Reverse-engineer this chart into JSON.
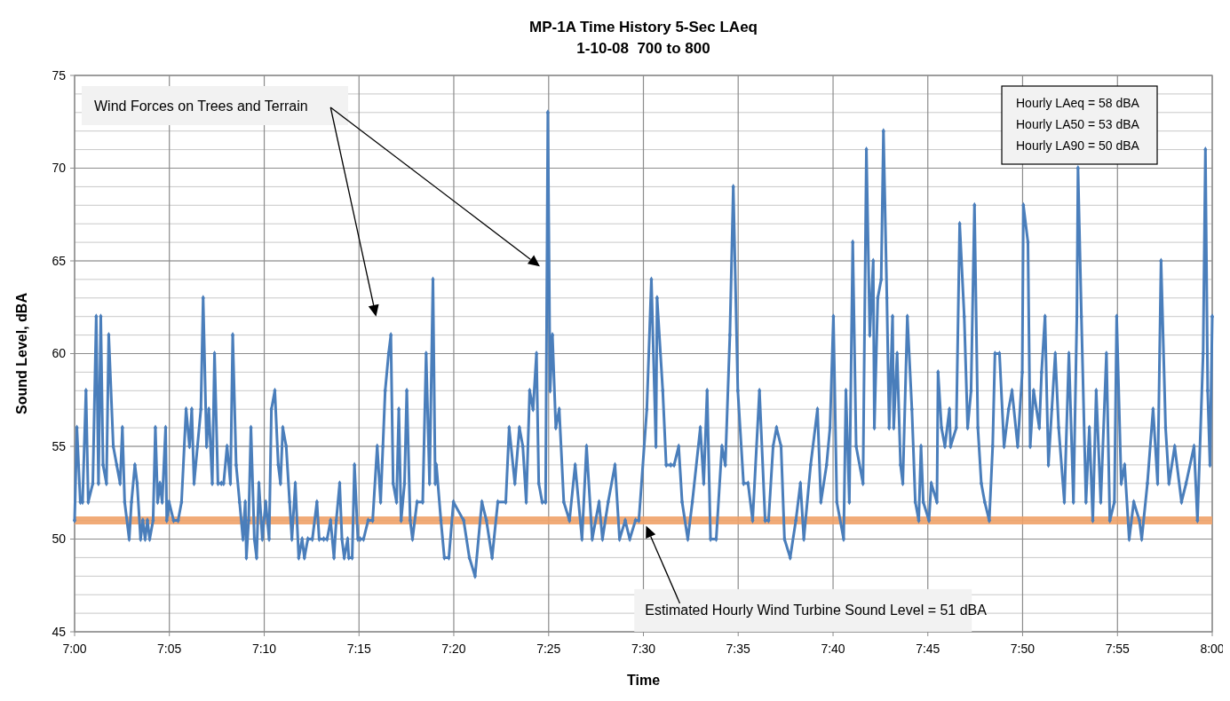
{
  "chart_data": {
    "type": "line",
    "title": "MP-1A Time History 5-Sec LAeq",
    "subtitle": "1-10-08  700 to 800",
    "xlabel": "Time",
    "ylabel": "Sound Level, dBA",
    "x": [
      7.0,
      7.002,
      7.005,
      7.007,
      7.01,
      7.012,
      7.016,
      7.019,
      7.021,
      7.023,
      7.025,
      7.028,
      7.03,
      7.034,
      7.037,
      7.04,
      7.042,
      7.044,
      7.048,
      7.05,
      7.053,
      7.055,
      7.058,
      7.06,
      7.062,
      7.064,
      7.066,
      7.069,
      7.071,
      7.073,
      7.075,
      7.077,
      7.08,
      7.081,
      7.083,
      7.087,
      7.091,
      7.094,
      7.098,
      7.101,
      7.103,
      7.105,
      7.108,
      7.111,
      7.113,
      7.116,
      7.118,
      7.121,
      7.123,
      7.126,
      7.129,
      7.131,
      7.134,
      7.137,
      7.139,
      7.142,
      7.145,
      7.148,
      7.15,
      7.151,
      7.153,
      7.155,
      7.158,
      7.16,
      7.162,
      7.165,
      7.168,
      7.171,
      7.173,
      7.176,
      7.179,
      7.181,
      7.183,
      7.186,
      7.189,
      7.191,
      7.194,
      7.197,
      7.2,
      7.202,
      7.205,
      7.209,
      7.213,
      7.215,
      7.219,
      7.222,
      7.225,
      7.228,
      7.23,
      7.233,
      7.235,
      7.237,
      7.24,
      7.241,
      7.244,
      7.246,
      7.249,
      7.251,
      7.254,
      7.258,
      7.262,
      7.266,
      7.269,
      7.271,
      7.273,
      7.276,
      7.278,
      7.28,
      7.283,
      7.285,
      7.287,
      7.29,
      7.292,
      7.295,
      7.297,
      7.301,
      7.306,
      7.309,
      7.312,
      7.315,
      7.317,
      7.318,
      7.322,
      7.325,
      7.329,
      7.333,
      7.342,
      7.347,
      7.352,
      7.358,
      7.362,
      7.367,
      7.372,
      7.379,
      7.382,
      7.387,
      7.391,
      7.394,
      7.397,
      7.4,
      7.403,
      7.406,
      7.408,
      7.411,
      7.414,
      7.416,
      7.418,
      7.42,
      7.423,
      7.426,
      7.43,
      7.435,
      7.44,
      7.446,
      7.45,
      7.455,
      7.461,
      7.464,
      7.469,
      7.475,
      7.479,
      7.484,
      7.488,
      7.493,
      7.496,
      7.503,
      7.507,
      7.511,
      7.512,
      7.517,
      7.52,
      7.524,
      7.527,
      7.531,
      7.534,
      7.539,
      7.543,
      7.55,
      7.553,
      7.556,
      7.559,
      7.564,
      7.569,
      7.572,
      7.576,
      7.579,
      7.583,
      7.588,
      7.592,
      7.596,
      7.602,
      7.607,
      7.61,
      7.614,
      7.617,
      7.621,
      7.624,
      7.629,
      7.634,
      7.638,
      7.641,
      7.647,
      7.653,
      7.656,
      7.661,
      7.664,
      7.667,
      7.67,
      7.676,
      7.678,
      7.681,
      7.684,
      7.687,
      7.693,
      7.696,
      7.699,
      7.702,
      7.703,
      7.706,
      7.709,
      7.711,
      7.714,
      7.716,
      7.719,
      7.72,
      7.723,
      7.726,
      7.728,
      7.732,
      7.736,
      7.739,
      7.742,
      7.744,
      7.746,
      7.751,
      7.753,
      7.758,
      7.759,
      7.762,
      7.765,
      7.769,
      7.77,
      7.775,
      7.778,
      7.782,
      7.785,
      7.788,
      7.791,
      7.794,
      7.797,
      7.8,
      7.804,
      7.807,
      7.809,
      7.813,
      7.817,
      7.821,
      7.824,
      7.829,
      7.833,
      7.834,
      7.838,
      7.84,
      7.843,
      7.848,
      7.85,
      7.853,
      7.856,
      7.859,
      7.862,
      7.865,
      7.87,
      7.874,
      7.878,
      7.881,
      7.882,
      7.885,
      7.889,
      7.892,
      7.895,
      7.898,
      7.902,
      7.907,
      7.91,
      7.914,
      7.916,
      7.92,
      7.923,
      7.927,
      7.931,
      7.936,
      7.938,
      7.943,
      7.948,
      7.952,
      7.955,
      7.959,
      7.962,
      7.967,
      7.973,
      7.977,
      7.984,
      7.987,
      7.992,
      7.994,
      7.996,
      7.998,
      8.0
    ],
    "series": [
      {
        "color": "#4a7ebb",
        "values": [
          51,
          56,
          52,
          52,
          58,
          52,
          53,
          62,
          53,
          62,
          54,
          53,
          61,
          55,
          54,
          53,
          56,
          52,
          50,
          52,
          54,
          53,
          50,
          51,
          50,
          51,
          50,
          51,
          56,
          52,
          53,
          52,
          56,
          51,
          52,
          51,
          51,
          52,
          57,
          55,
          57,
          53,
          55,
          57,
          63,
          55,
          57,
          53,
          60,
          53,
          53,
          53,
          55,
          53,
          61,
          54,
          52,
          50,
          52,
          49,
          51,
          56,
          50,
          49,
          53,
          50,
          52,
          50,
          57,
          58,
          54,
          53,
          56,
          55,
          52,
          50,
          53,
          49,
          50,
          49,
          50,
          50,
          52,
          50,
          50,
          50,
          51,
          49,
          51,
          53,
          50,
          49,
          50,
          49,
          49,
          54,
          50,
          50,
          50,
          51,
          51,
          55,
          52,
          55,
          58,
          60,
          61,
          53,
          52,
          57,
          51,
          53,
          58,
          51,
          50,
          52,
          52,
          60,
          53,
          64,
          53,
          54,
          51,
          49,
          49,
          52,
          51,
          49,
          48,
          52,
          51,
          49,
          52,
          52,
          56,
          53,
          56,
          55,
          52,
          58,
          57,
          60,
          53,
          52,
          52,
          73,
          58,
          61,
          56,
          57,
          52,
          51,
          54,
          50,
          55,
          50,
          52,
          50,
          52,
          54,
          50,
          51,
          50,
          51,
          51,
          57,
          64,
          55,
          63,
          58,
          54,
          54,
          54,
          55,
          52,
          50,
          52,
          56,
          53,
          58,
          50,
          50,
          55,
          54,
          61,
          69,
          58,
          53,
          53,
          51,
          58,
          51,
          51,
          55,
          56,
          55,
          50,
          49,
          51,
          53,
          50,
          54,
          57,
          52,
          54,
          56,
          62,
          52,
          50,
          58,
          52,
          66,
          55,
          53,
          71,
          61,
          65,
          56,
          63,
          64,
          72,
          63,
          56,
          62,
          56,
          60,
          54,
          53,
          62,
          57,
          52,
          51,
          55,
          52,
          51,
          53,
          52,
          59,
          56,
          55,
          57,
          55,
          56,
          67,
          62,
          56,
          58,
          68,
          56,
          53,
          52,
          51,
          55,
          60,
          60,
          55,
          57,
          58,
          55,
          59,
          68,
          66,
          55,
          58,
          56,
          59,
          62,
          54,
          57,
          60,
          56,
          52,
          60,
          52,
          62,
          70,
          62,
          52,
          56,
          51,
          58,
          52,
          60,
          51,
          52,
          62,
          53,
          54,
          50,
          52,
          51,
          50,
          53,
          57,
          53,
          65,
          56,
          53,
          55,
          52,
          53,
          55,
          51,
          60,
          71,
          58,
          54,
          62
        ]
      }
    ],
    "xlim": [
      7,
      8
    ],
    "ylim": [
      45,
      75
    ],
    "xticks": [
      {
        "value": 7,
        "label": "7:00"
      },
      {
        "value": 7.0833,
        "label": "7:05"
      },
      {
        "value": 7.1667,
        "label": "7:10"
      },
      {
        "value": 7.25,
        "label": "7:15"
      },
      {
        "value": 7.3333,
        "label": "7:20"
      },
      {
        "value": 7.4167,
        "label": "7:25"
      },
      {
        "value": 7.5,
        "label": "7:30"
      },
      {
        "value": 7.5833,
        "label": "7:35"
      },
      {
        "value": 7.6667,
        "label": "7:40"
      },
      {
        "value": 7.75,
        "label": "7:45"
      },
      {
        "value": 7.8333,
        "label": "7:50"
      },
      {
        "value": 7.9167,
        "label": "7:55"
      },
      {
        "value": 8,
        "label": "8:00"
      }
    ],
    "yticks": [
      45,
      50,
      55,
      60,
      65,
      70,
      75
    ],
    "grid": true,
    "marker": "diamond",
    "line_style": "solid",
    "ref_lines": [
      {
        "axis": "y",
        "value": 51,
        "color": "#f0a36a"
      }
    ],
    "annotations": [
      "Wind Forces on Trees and Terrain",
      "Estimated Hourly Wind Turbine Sound Level = 51 dBA",
      "Hourly LAeq = 58 dBA",
      "Hourly LA50 = 53 dBA",
      "Hourly LA90 = 50 dBA"
    ]
  }
}
